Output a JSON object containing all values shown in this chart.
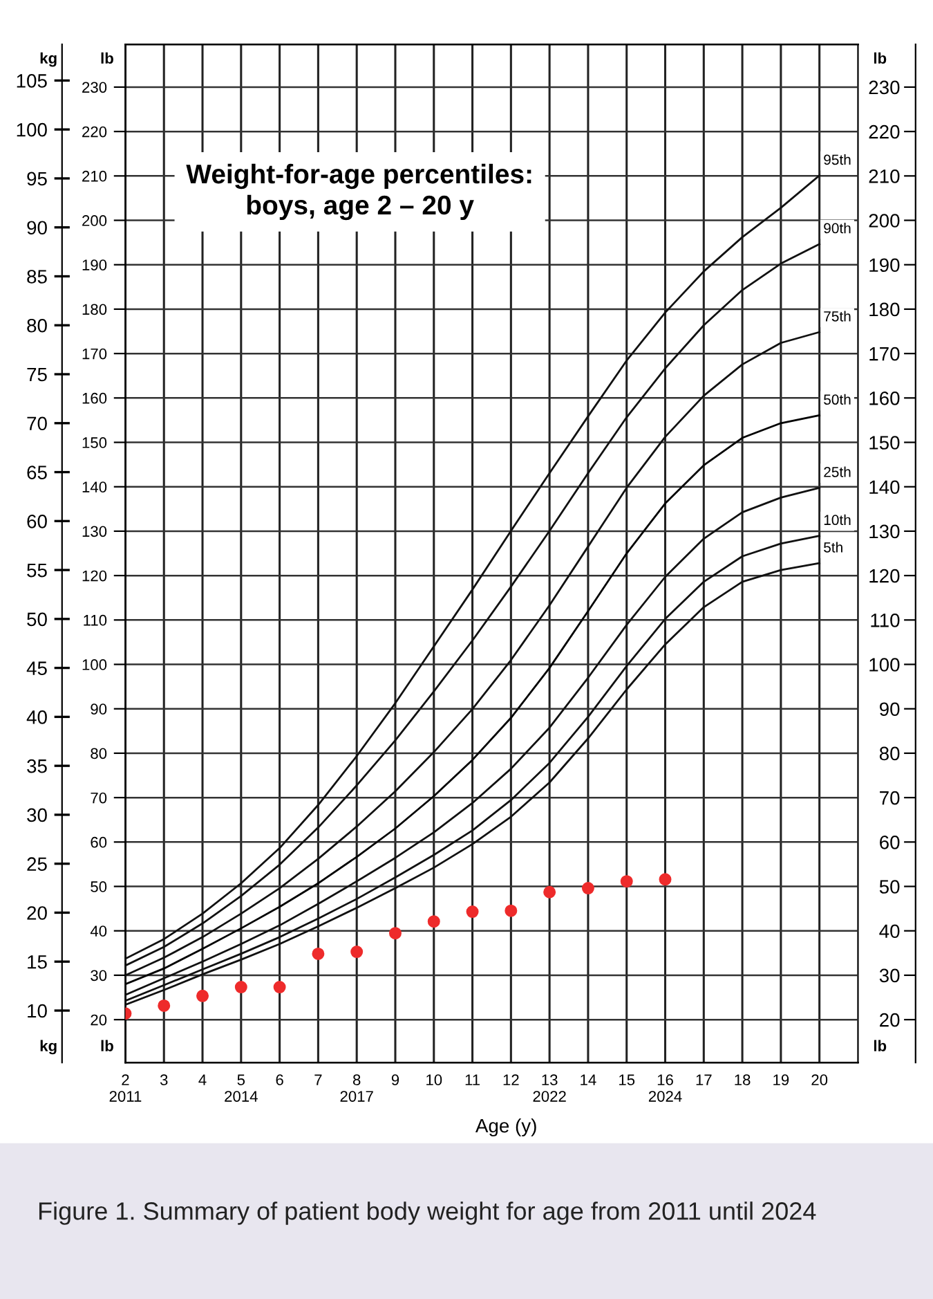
{
  "chart_data": {
    "type": "line",
    "title": "Weight-for-age percentiles:\nboys, age 2 – 20 y",
    "xlabel": "Age (y)",
    "ylabel": "kg",
    "y2label": "lb",
    "y3label": "lb",
    "x": [
      2,
      3,
      4,
      5,
      6,
      7,
      8,
      9,
      10,
      11,
      12,
      13,
      14,
      15,
      16,
      17,
      18,
      19,
      20
    ],
    "series": [
      {
        "name": "95th",
        "color": "#111111",
        "values": [
          15.3,
          17.3,
          19.9,
          23.0,
          26.6,
          31.0,
          36.0,
          41.4,
          47.2,
          53.0,
          59.0,
          64.9,
          70.7,
          76.4,
          81.3,
          85.5,
          89.0,
          92.0,
          95.3
        ]
      },
      {
        "name": "90th",
        "color": "#111111",
        "values": [
          14.6,
          16.5,
          18.9,
          21.7,
          24.9,
          28.7,
          33.0,
          37.6,
          42.6,
          47.8,
          53.3,
          59.0,
          64.9,
          70.6,
          75.6,
          80.0,
          83.6,
          86.3,
          88.3
        ]
      },
      {
        "name": "75th",
        "color": "#111111",
        "values": [
          13.6,
          15.4,
          17.5,
          19.9,
          22.5,
          25.5,
          28.8,
          32.4,
          36.4,
          40.8,
          45.8,
          51.4,
          57.4,
          63.4,
          68.6,
          72.8,
          76.0,
          78.2,
          79.3
        ]
      },
      {
        "name": "50th",
        "color": "#000000",
        "values": [
          12.7,
          14.3,
          16.3,
          18.4,
          20.6,
          23.0,
          25.7,
          28.6,
          31.9,
          35.6,
          39.9,
          45.0,
          50.8,
          56.7,
          61.8,
          65.7,
          68.5,
          70.0,
          70.8
        ]
      },
      {
        "name": "25th",
        "color": "#111111",
        "values": [
          11.6,
          13.3,
          15.0,
          16.8,
          18.7,
          20.9,
          23.2,
          25.6,
          28.2,
          31.2,
          34.7,
          38.9,
          44.0,
          49.4,
          54.3,
          58.2,
          60.9,
          62.4,
          63.4
        ]
      },
      {
        "name": "10th",
        "color": "#111111",
        "values": [
          11.0,
          12.6,
          14.2,
          15.8,
          17.5,
          19.4,
          21.4,
          23.6,
          25.9,
          28.4,
          31.5,
          35.3,
          40.0,
          45.2,
          50.0,
          53.8,
          56.4,
          57.7,
          58.5
        ]
      },
      {
        "name": "5th",
        "color": "#111111",
        "values": [
          10.6,
          12.1,
          13.7,
          15.2,
          16.8,
          18.6,
          20.5,
          22.5,
          24.6,
          27.0,
          29.8,
          33.3,
          37.8,
          42.8,
          47.4,
          51.2,
          53.8,
          55.0,
          55.7
        ]
      },
      {
        "type": "scatter",
        "color": "#ee2b2b",
        "marker": "circle",
        "x": [
          2,
          3,
          4,
          5,
          6,
          7,
          8,
          9,
          10,
          11,
          12,
          13,
          14,
          15,
          16
        ],
        "values": [
          9.7,
          10.5,
          11.5,
          12.4,
          12.4,
          15.8,
          16.0,
          17.9,
          19.1,
          20.1,
          20.2,
          22.1,
          22.5,
          23.2,
          23.4
        ]
      }
    ],
    "xlim": [
      2,
      21
    ],
    "xticks": [
      {
        "value": 2,
        "label": "2\n2011"
      },
      3,
      4,
      {
        "value": 5,
        "label": "5\n2014"
      },
      6,
      7,
      {
        "value": 8,
        "label": "8\n2017"
      },
      9,
      10,
      11,
      12,
      {
        "value": 13,
        "label": "13\n2022"
      },
      14,
      {
        "value": 15,
        "label": "15"
      },
      {
        "value": 16,
        "label": "16\n2024"
      },
      17,
      18,
      19,
      20
    ],
    "ylim": [
      4.7,
      108.7
    ],
    "yticks": [
      10,
      15,
      20,
      25,
      30,
      35,
      40,
      45,
      50,
      55,
      60,
      65,
      70,
      75,
      80,
      85,
      90,
      95,
      100,
      105
    ],
    "y2lim": [
      10.36,
      239.64
    ],
    "y2ticks": [
      20,
      30,
      40,
      50,
      60,
      70,
      80,
      90,
      100,
      110,
      120,
      130,
      140,
      150,
      160,
      170,
      180,
      190,
      200,
      210,
      220,
      230
    ],
    "y3lim": [
      10.36,
      239.64
    ],
    "y3ticks": [
      20,
      30,
      40,
      50,
      60,
      70,
      80,
      90,
      100,
      110,
      120,
      130,
      140,
      150,
      160,
      170,
      180,
      190,
      200,
      210,
      220,
      230
    ],
    "grid": true,
    "marker": "none",
    "line_style": "solid",
    "legend": false,
    "annotations": [
      "Figure 1. Summary of patient body weight for age from 2011 until 2024"
    ]
  }
}
